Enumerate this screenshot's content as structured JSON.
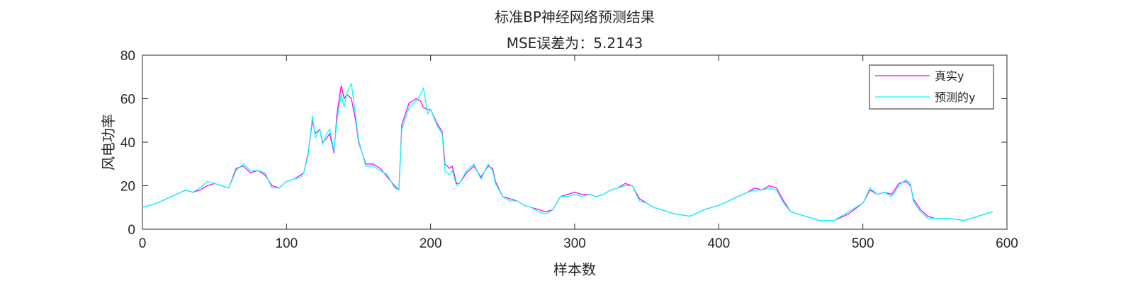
{
  "chart_data": {
    "type": "line",
    "title": "标准BP神经网络预测结果",
    "subtitle": "MSE误差为：5.2143",
    "xlabel": "样本数",
    "ylabel": "风电功率",
    "xlim": [
      0,
      600
    ],
    "ylim": [
      0,
      80
    ],
    "xticks": [
      0,
      100,
      200,
      300,
      400,
      500,
      600
    ],
    "yticks": [
      0,
      20,
      40,
      60,
      80
    ],
    "grid": false,
    "legend_position": "top-right",
    "colors": {
      "true": "#ff00ff",
      "pred": "#00ffff"
    },
    "series": [
      {
        "name": "真实y",
        "color": "#ff00ff",
        "x": [
          0,
          10,
          20,
          30,
          35,
          40,
          45,
          50,
          55,
          60,
          65,
          70,
          75,
          80,
          85,
          90,
          95,
          100,
          105,
          110,
          112,
          115,
          118,
          120,
          123,
          125,
          128,
          130,
          133,
          135,
          138,
          140,
          142,
          145,
          148,
          150,
          155,
          160,
          165,
          170,
          175,
          178,
          180,
          182,
          185,
          190,
          193,
          195,
          198,
          200,
          205,
          208,
          210,
          213,
          215,
          218,
          220,
          225,
          230,
          235,
          240,
          243,
          245,
          250,
          255,
          260,
          265,
          270,
          275,
          280,
          285,
          290,
          295,
          300,
          305,
          310,
          315,
          320,
          325,
          330,
          335,
          340,
          345,
          350,
          355,
          360,
          370,
          380,
          390,
          400,
          410,
          420,
          425,
          430,
          435,
          440,
          445,
          450,
          460,
          470,
          480,
          490,
          500,
          505,
          510,
          515,
          520,
          525,
          530,
          533,
          535,
          540,
          545,
          550,
          560,
          570,
          580,
          590
        ],
        "values": [
          10,
          12,
          15,
          18,
          17,
          18,
          20,
          21,
          20,
          19,
          28,
          29,
          26,
          27,
          25,
          20,
          19,
          22,
          23,
          25,
          26,
          35,
          50,
          44,
          46,
          40,
          42,
          44,
          35,
          53,
          66,
          60,
          62,
          60,
          50,
          40,
          30,
          30,
          28,
          24,
          20,
          18,
          48,
          52,
          58,
          60,
          59,
          56,
          55,
          55,
          48,
          45,
          30,
          28,
          29,
          21,
          21,
          26,
          29,
          24,
          29,
          28,
          22,
          15,
          14,
          13,
          11,
          10,
          9,
          8,
          9,
          15,
          16,
          17,
          16,
          16,
          15,
          16,
          18,
          19,
          21,
          20,
          14,
          12,
          10,
          9,
          7,
          6,
          9,
          11,
          14,
          17,
          19,
          18,
          20,
          19,
          13,
          8,
          6,
          4,
          4,
          7,
          12,
          18,
          16,
          17,
          16,
          21,
          22,
          20,
          14,
          9,
          6,
          5,
          5,
          4,
          6,
          8
        ]
      },
      {
        "name": "预测的y",
        "color": "#00ffff",
        "x": [
          0,
          10,
          20,
          30,
          35,
          40,
          45,
          50,
          55,
          60,
          65,
          70,
          75,
          80,
          85,
          90,
          95,
          100,
          105,
          110,
          112,
          115,
          118,
          120,
          123,
          125,
          128,
          130,
          133,
          135,
          138,
          140,
          142,
          145,
          148,
          150,
          155,
          160,
          165,
          170,
          175,
          178,
          180,
          182,
          185,
          190,
          193,
          195,
          198,
          200,
          205,
          208,
          210,
          213,
          215,
          218,
          220,
          225,
          230,
          235,
          240,
          243,
          245,
          250,
          255,
          260,
          265,
          270,
          275,
          280,
          285,
          290,
          295,
          300,
          305,
          310,
          315,
          320,
          325,
          330,
          335,
          340,
          345,
          350,
          355,
          360,
          370,
          380,
          390,
          400,
          410,
          420,
          425,
          430,
          435,
          440,
          445,
          450,
          460,
          470,
          480,
          490,
          500,
          505,
          510,
          515,
          520,
          525,
          530,
          533,
          535,
          540,
          545,
          550,
          560,
          570,
          580,
          590
        ],
        "values": [
          10,
          12,
          15,
          18,
          17,
          19,
          22,
          21,
          20,
          19,
          27,
          30,
          27,
          27,
          26,
          19,
          19,
          22,
          23,
          24,
          26,
          34,
          52,
          42,
          46,
          39,
          44,
          46,
          36,
          50,
          62,
          56,
          63,
          67,
          52,
          41,
          29,
          29,
          27,
          25,
          19,
          18,
          46,
          50,
          56,
          59,
          62,
          65,
          53,
          55,
          47,
          44,
          27,
          25,
          27,
          20,
          21,
          27,
          30,
          23,
          30,
          27,
          21,
          15,
          13,
          13,
          11,
          10,
          8,
          7,
          9,
          15,
          15,
          16,
          15,
          16,
          15,
          16,
          18,
          19,
          20,
          20,
          13,
          12,
          10,
          9,
          7,
          6,
          9,
          11,
          14,
          17,
          18,
          18,
          19,
          18,
          12,
          8,
          6,
          4,
          4,
          8,
          12,
          19,
          16,
          17,
          15,
          20,
          23,
          21,
          13,
          8,
          5,
          5,
          5,
          4,
          6,
          8
        ]
      }
    ]
  }
}
